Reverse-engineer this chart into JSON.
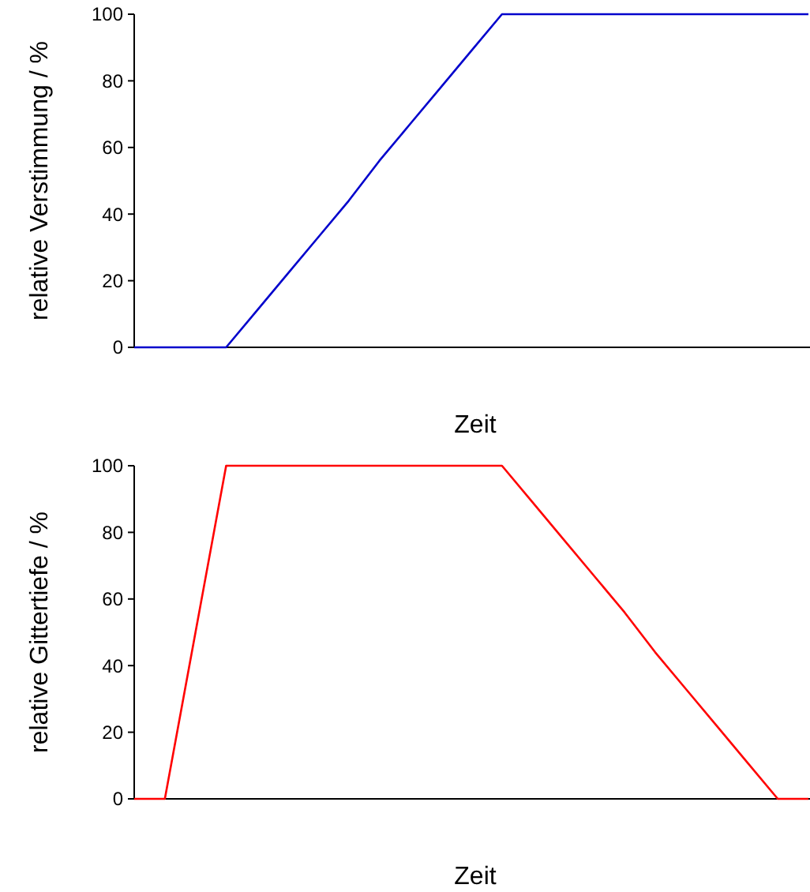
{
  "chart_data": [
    {
      "type": "line",
      "xlabel": "Zeit",
      "ylabel": "relative Verstimmung / %",
      "categories": [
        null,
        null,
        null,
        null,
        null,
        null,
        null,
        null,
        null,
        null,
        null,
        null,
        null,
        null,
        null,
        null,
        null,
        null,
        null,
        null,
        null,
        null,
        null
      ],
      "series": [
        {
          "color": "#0000cc",
          "values": [
            0,
            0,
            0,
            0,
            11,
            22,
            33,
            44,
            56,
            67,
            78,
            89,
            100,
            100,
            100,
            100,
            100,
            100,
            100,
            100,
            100,
            100,
            100
          ]
        }
      ],
      "ylim": [
        0,
        100
      ],
      "yticks": [
        0,
        20,
        40,
        60,
        80,
        100
      ],
      "tick_labels": "y",
      "grid": false,
      "marker": "none",
      "line_style": "solid"
    },
    {
      "type": "line",
      "xlabel": "Zeit",
      "ylabel": "relative Gittertiefe / %",
      "categories": [
        null,
        null,
        null,
        null,
        null,
        null,
        null,
        null,
        null,
        null,
        null,
        null,
        null,
        null,
        null,
        null,
        null,
        null,
        null,
        null,
        null,
        null,
        null
      ],
      "series": [
        {
          "color": "#ff0000",
          "values": [
            0,
            0,
            50,
            100,
            100,
            100,
            100,
            100,
            100,
            100,
            100,
            100,
            100,
            89,
            78,
            67,
            56,
            44,
            33,
            22,
            11,
            0,
            0
          ]
        }
      ],
      "ylim": [
        0,
        100
      ],
      "yticks": [
        0,
        20,
        40,
        60,
        80,
        100
      ],
      "tick_labels": "y",
      "grid": false,
      "marker": "none",
      "line_style": "solid"
    }
  ]
}
